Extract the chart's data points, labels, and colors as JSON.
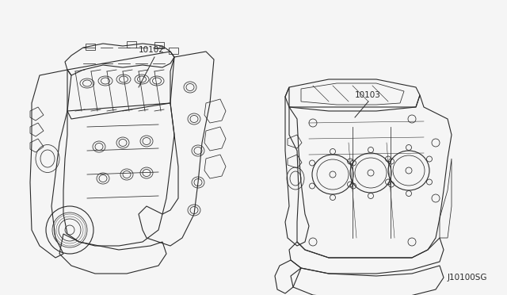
{
  "diagram_bg": "#f5f5f5",
  "line_color": "#2a2a2a",
  "label_color": "#2a2a2a",
  "part1_label": "10102",
  "part2_label": "10103",
  "diagram_code": "J10100SG",
  "fig_width": 6.4,
  "fig_height": 3.72,
  "dpi": 100,
  "font_size_labels": 7.5,
  "font_size_code": 7.5
}
